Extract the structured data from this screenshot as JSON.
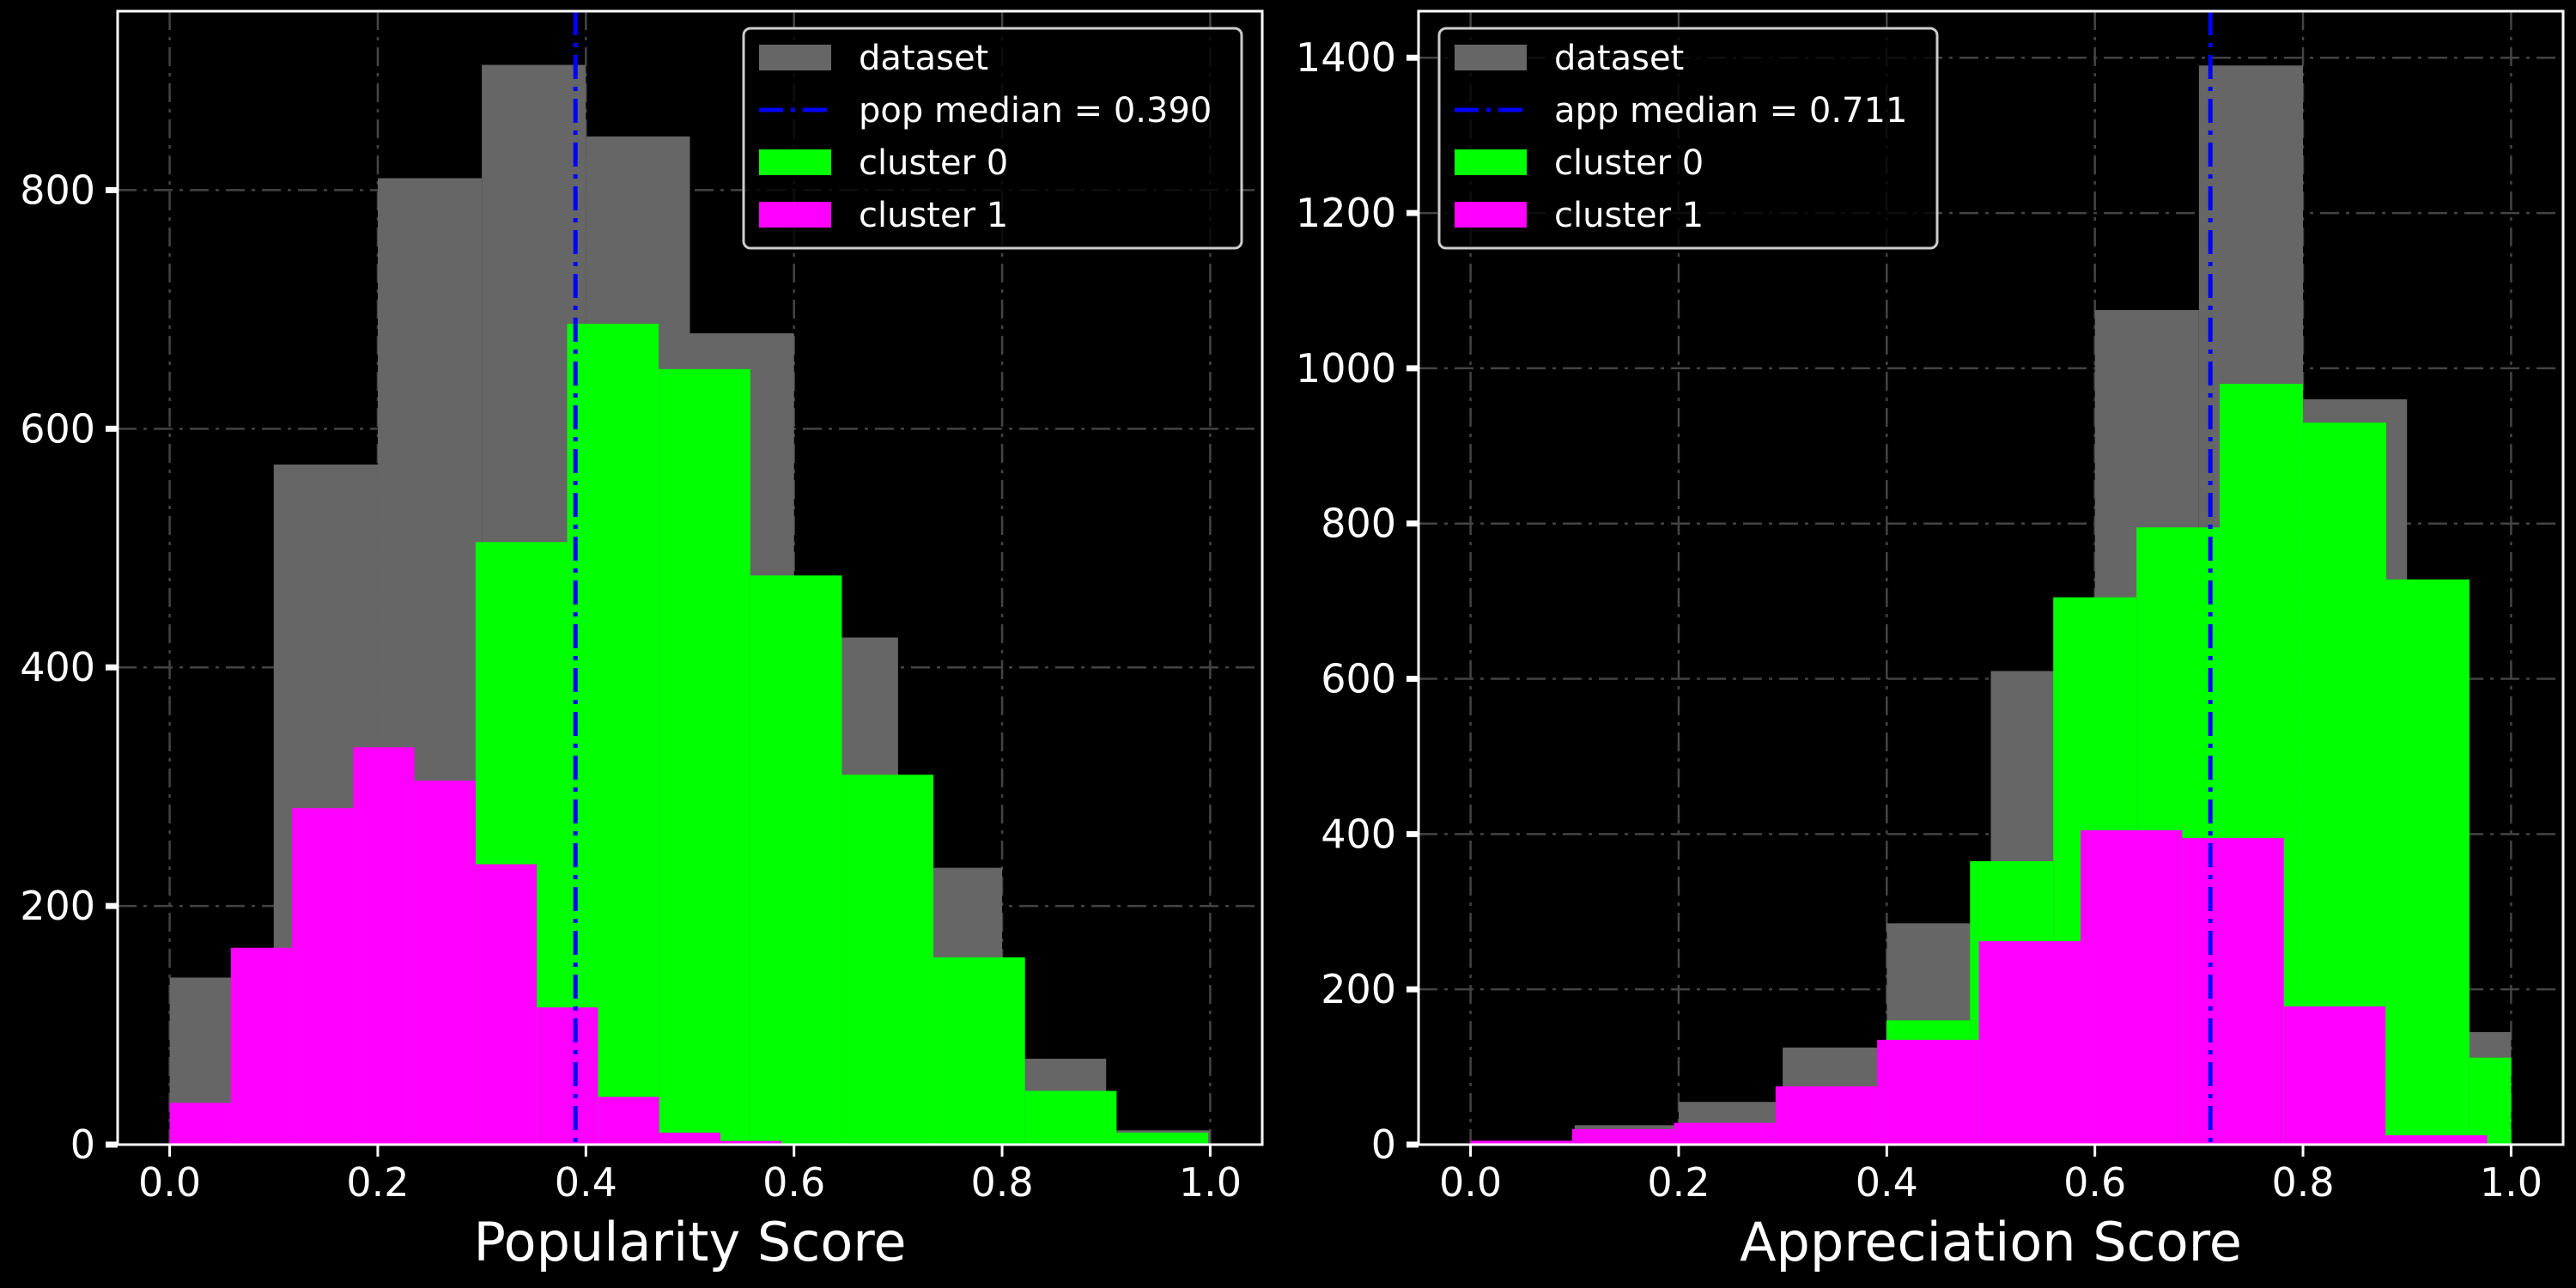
{
  "chart_data": [
    {
      "type": "bar",
      "xlabel": "Popularity Score",
      "ylabel": "",
      "xlim": [
        -0.05,
        1.05
      ],
      "ylim": [
        0,
        950
      ],
      "xticks": [
        0.0,
        0.2,
        0.4,
        0.6,
        0.8,
        1.0
      ],
      "xtick_labels": [
        "0.0",
        "0.2",
        "0.4",
        "0.6",
        "0.8",
        "1.0"
      ],
      "yticks": [
        0,
        200,
        400,
        600,
        800
      ],
      "ytick_labels": [
        "0",
        "200",
        "400",
        "600",
        "800"
      ],
      "grid": true,
      "legend_position": "top-right",
      "median_line": {
        "label": "pop median = 0.390",
        "value": 0.39,
        "color": "#0000ff"
      },
      "series": [
        {
          "name": "dataset",
          "color": "#666666",
          "bins": [
            [
              0.0,
              0.1,
              140
            ],
            [
              0.1,
              0.2,
              570
            ],
            [
              0.2,
              0.3,
              810
            ],
            [
              0.3,
              0.4,
              905
            ],
            [
              0.4,
              0.5,
              845
            ],
            [
              0.5,
              0.6,
              680
            ],
            [
              0.6,
              0.7,
              425
            ],
            [
              0.7,
              0.8,
              232
            ],
            [
              0.8,
              0.9,
              72
            ],
            [
              0.9,
              1.0,
              12
            ]
          ]
        },
        {
          "name": "cluster 0",
          "color": "#00ff00",
          "bins": [
            [
              0.294,
              0.382,
              505
            ],
            [
              0.382,
              0.47,
              688
            ],
            [
              0.47,
              0.558,
              650
            ],
            [
              0.558,
              0.646,
              477
            ],
            [
              0.646,
              0.734,
              310
            ],
            [
              0.734,
              0.822,
              157
            ],
            [
              0.822,
              0.91,
              45
            ],
            [
              0.91,
              0.998,
              10
            ]
          ]
        },
        {
          "name": "cluster 1",
          "color": "#ff00ff",
          "bins": [
            [
              0.0,
              0.0588,
              35
            ],
            [
              0.0588,
              0.1176,
              165
            ],
            [
              0.1176,
              0.1764,
              282
            ],
            [
              0.1764,
              0.2352,
              333
            ],
            [
              0.2352,
              0.294,
              305
            ],
            [
              0.294,
              0.3528,
              235
            ],
            [
              0.3528,
              0.4116,
              115
            ],
            [
              0.4116,
              0.4704,
              40
            ],
            [
              0.4704,
              0.5292,
              10
            ],
            [
              0.5292,
              0.588,
              3
            ]
          ]
        }
      ]
    },
    {
      "type": "bar",
      "xlabel": "Appreciation Score",
      "ylabel": "",
      "xlim": [
        -0.05,
        1.05
      ],
      "ylim": [
        0,
        1460
      ],
      "xticks": [
        0.0,
        0.2,
        0.4,
        0.6,
        0.8,
        1.0
      ],
      "xtick_labels": [
        "0.0",
        "0.2",
        "0.4",
        "0.6",
        "0.8",
        "1.0"
      ],
      "yticks": [
        0,
        200,
        400,
        600,
        800,
        1000,
        1200,
        1400
      ],
      "ytick_labels": [
        "0",
        "200",
        "400",
        "600",
        "800",
        "1000",
        "1200",
        "1400"
      ],
      "grid": true,
      "legend_position": "top-left",
      "median_line": {
        "label": "app median = 0.711",
        "value": 0.711,
        "color": "#0000ff"
      },
      "series": [
        {
          "name": "dataset",
          "color": "#666666",
          "bins": [
            [
              0.0,
              0.1,
              5
            ],
            [
              0.1,
              0.2,
              25
            ],
            [
              0.2,
              0.3,
              55
            ],
            [
              0.3,
              0.4,
              125
            ],
            [
              0.4,
              0.5,
              285
            ],
            [
              0.5,
              0.6,
              610
            ],
            [
              0.6,
              0.7,
              1075
            ],
            [
              0.7,
              0.8,
              1390
            ],
            [
              0.8,
              0.9,
              960
            ],
            [
              0.9,
              1.0,
              145
            ]
          ]
        },
        {
          "name": "cluster 0",
          "color": "#00ff00",
          "bins": [
            [
              0.4,
              0.48,
              160
            ],
            [
              0.48,
              0.56,
              365
            ],
            [
              0.56,
              0.64,
              705
            ],
            [
              0.64,
              0.72,
              795
            ],
            [
              0.72,
              0.8,
              980
            ],
            [
              0.8,
              0.88,
              930
            ],
            [
              0.88,
              0.96,
              728
            ],
            [
              0.96,
              1.0,
              112
            ]
          ]
        },
        {
          "name": "cluster 1",
          "color": "#ff00ff",
          "bins": [
            [
              0.0,
              0.0977,
              5
            ],
            [
              0.0977,
              0.1954,
              20
            ],
            [
              0.1954,
              0.2931,
              28
            ],
            [
              0.2931,
              0.3908,
              75
            ],
            [
              0.3908,
              0.4885,
              135
            ],
            [
              0.4885,
              0.5862,
              262
            ],
            [
              0.5862,
              0.6839,
              405
            ],
            [
              0.6839,
              0.7816,
              395
            ],
            [
              0.7816,
              0.8793,
              178
            ],
            [
              0.8793,
              0.977,
              12
            ]
          ]
        }
      ]
    }
  ]
}
